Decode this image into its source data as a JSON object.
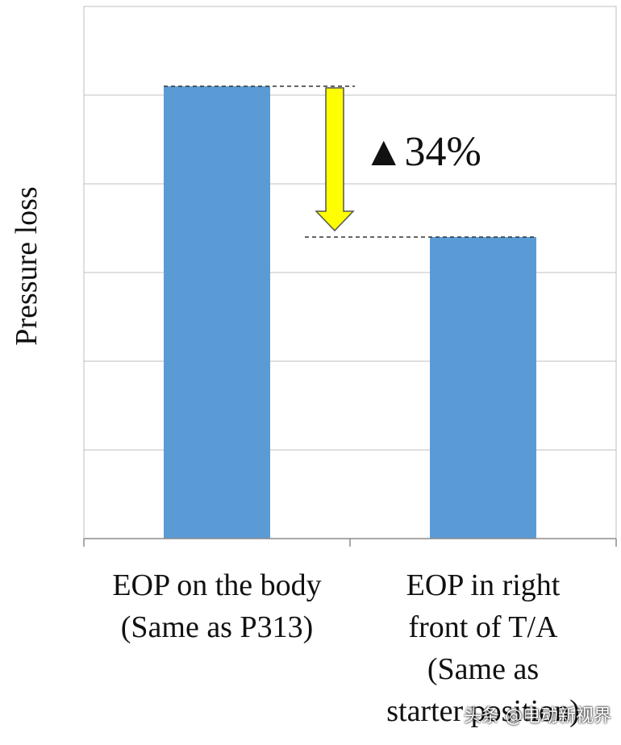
{
  "chart_data": {
    "type": "bar",
    "ylabel": "Pressure loss",
    "ylim": [
      0,
      6
    ],
    "yticks": [
      0,
      1,
      2,
      3,
      4,
      5,
      6
    ],
    "grid": true,
    "categories": [
      [
        "EOP on the body",
        "(Same as P313)"
      ],
      [
        "EOP in right",
        "front of T/A",
        "(Same as",
        "starter position)"
      ]
    ],
    "values": [
      5.1,
      3.4
    ],
    "bar_color": "#5B9BD5",
    "annotation": {
      "text": "▲34%",
      "arrow_color": "#FFFF00"
    }
  },
  "watermark": "头条 @电动新视界"
}
